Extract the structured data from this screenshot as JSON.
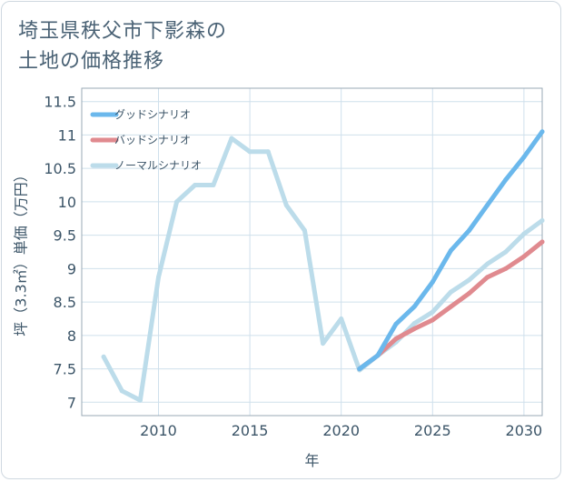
{
  "title_lines": [
    "埼玉県秩父市下影森の",
    "土地の価格推移"
  ],
  "chart_data": {
    "type": "line",
    "title": "埼玉県秩父市下影森の土地の価格推移",
    "xlabel": "年",
    "ylabel": "坪（3.3㎡）単価（万円）",
    "xlim": [
      2005.8,
      2031
    ],
    "ylim": [
      6.8,
      11.7
    ],
    "x_ticks": [
      2010,
      2015,
      2020,
      2025,
      2030
    ],
    "y_ticks": [
      7,
      7.5,
      8,
      8.5,
      9,
      9.5,
      10,
      10.5,
      11,
      11.5
    ],
    "y_tick_labels": [
      "7",
      "7.5",
      "8",
      "8.5",
      "9",
      "9.5",
      "10",
      "10.5",
      "11",
      "11.5"
    ],
    "legend_position": "top-left",
    "series": [
      {
        "name": "グッドシナリオ",
        "color": "#6bb8ec",
        "x": [
          2021,
          2022,
          2023,
          2024,
          2025,
          2026,
          2027,
          2028,
          2029,
          2030,
          2031
        ],
        "values": [
          7.5,
          7.7,
          8.17,
          8.43,
          8.8,
          9.27,
          9.57,
          9.95,
          10.33,
          10.67,
          11.05
        ]
      },
      {
        "name": "バッドシナリオ",
        "color": "#e08a8f",
        "x": [
          2021,
          2022,
          2023,
          2024,
          2025,
          2026,
          2027,
          2028,
          2029,
          2030,
          2031
        ],
        "values": [
          7.5,
          7.7,
          7.95,
          8.1,
          8.23,
          8.43,
          8.63,
          8.87,
          9.0,
          9.18,
          9.4
        ]
      },
      {
        "name": "ノーマルシナリオ",
        "color": "#bcdcea",
        "x": [
          2007,
          2008,
          2009,
          2010,
          2011,
          2012,
          2013,
          2014,
          2015,
          2016,
          2017,
          2018,
          2019,
          2020,
          2021,
          2022,
          2023,
          2024,
          2025,
          2026,
          2027,
          2028,
          2029,
          2030,
          2031
        ],
        "values": [
          7.68,
          7.17,
          7.03,
          8.87,
          10.0,
          10.25,
          10.25,
          10.95,
          10.75,
          10.75,
          9.95,
          9.57,
          7.88,
          8.25,
          7.48,
          7.7,
          7.9,
          8.18,
          8.35,
          8.65,
          8.83,
          9.07,
          9.25,
          9.52,
          9.72
        ]
      }
    ]
  }
}
